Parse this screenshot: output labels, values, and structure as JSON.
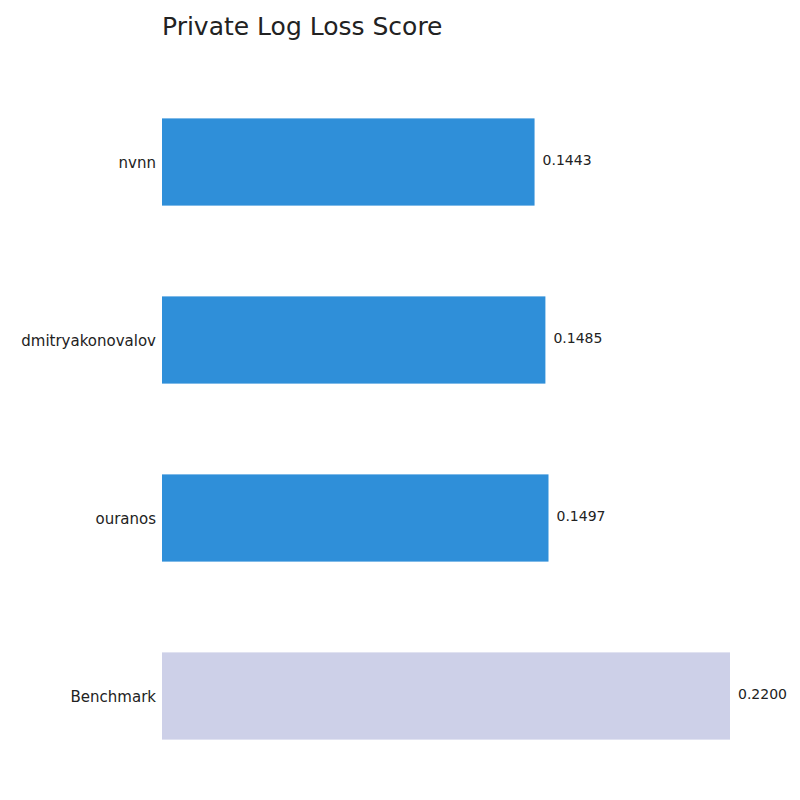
{
  "chart_data": {
    "type": "bar",
    "title": "Private Log Loss Score",
    "orientation": "horizontal",
    "categories": [
      "nvnn",
      "dmitryakonovalov",
      "ouranos",
      "Benchmark"
    ],
    "values": [
      0.1443,
      0.1485,
      0.1497,
      0.22
    ],
    "value_labels": [
      "0.1443",
      "0.1485",
      "0.1497",
      "0.2200"
    ],
    "colors": [
      "#2f8fd9",
      "#2f8fd9",
      "#2f8fd9",
      "#cdd0e8"
    ],
    "xlim": [
      0,
      0.22
    ],
    "data_labels": true,
    "tick_labels": false,
    "grid": false
  }
}
